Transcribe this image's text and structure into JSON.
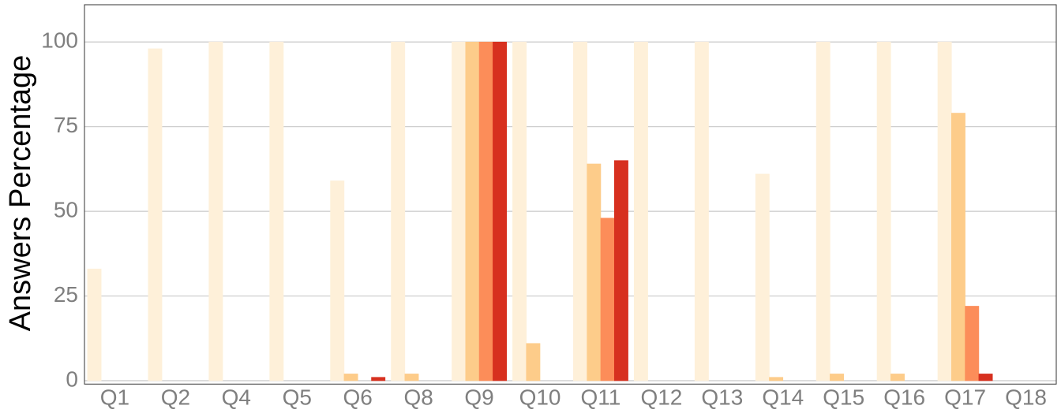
{
  "chart_data": {
    "type": "bar",
    "y_label": "Answers Percentage",
    "categories": [
      "Q1",
      "Q2",
      "Q4",
      "Q5",
      "Q6",
      "Q8",
      "Q9",
      "Q10",
      "Q11",
      "Q12",
      "Q13",
      "Q14",
      "Q15",
      "Q16",
      "Q17",
      "Q18"
    ],
    "series": [
      {
        "color": "#fef0d9",
        "values": [
          33,
          98,
          100,
          100,
          59,
          100,
          100,
          100,
          100,
          100,
          100,
          61,
          100,
          100,
          100,
          0
        ]
      },
      {
        "color": "#fdcc8a",
        "values": [
          0,
          0,
          0,
          0,
          2,
          2,
          100,
          11,
          64,
          0,
          0,
          1,
          2,
          2,
          79,
          0
        ]
      },
      {
        "color": "#fc8d59",
        "values": [
          0,
          0,
          0,
          0,
          0,
          0,
          100,
          0,
          48,
          0,
          0,
          0,
          0,
          0,
          22,
          0
        ]
      },
      {
        "color": "#d7301f",
        "values": [
          0,
          0,
          0,
          0,
          1,
          0,
          100,
          0,
          65,
          0,
          0,
          0,
          0,
          0,
          2,
          0
        ]
      }
    ],
    "ylim": [
      -1,
      111
    ],
    "yticks": [
      0,
      25,
      50,
      75,
      100
    ],
    "grid": true
  }
}
